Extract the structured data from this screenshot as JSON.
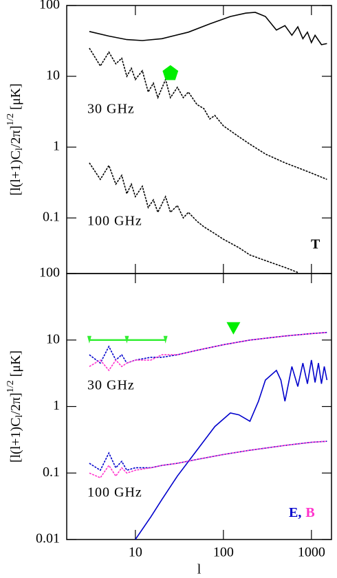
{
  "chart_data": [
    {
      "type": "line",
      "log_x": true,
      "log_y": true,
      "xlim": [
        1.66,
        1690
      ],
      "ylim": [
        0.0164,
        100
      ],
      "xticks": [
        10,
        100,
        1000
      ],
      "yticks": [
        100,
        10,
        1,
        0.1
      ],
      "ylabel": [
        "[l(l+1)C",
        "l",
        "/2π]",
        "1/2",
        " [μK]"
      ],
      "annotations": [
        "30 GHz",
        "100 GHz",
        "T"
      ],
      "series": [
        {
          "color": "#000000",
          "style": "solid",
          "x": [
            3,
            5,
            8,
            12,
            20,
            40,
            70,
            120,
            180,
            230,
            300,
            400,
            500,
            600,
            700,
            800,
            900,
            1000,
            1100,
            1300,
            1500
          ],
          "values": [
            43,
            37,
            33,
            32,
            34,
            42,
            55,
            70,
            78,
            80,
            70,
            45,
            52,
            38,
            50,
            34,
            42,
            30,
            38,
            28,
            29
          ]
        },
        {
          "color": "#000000",
          "style": "dotted",
          "x": [
            3,
            4,
            5,
            6,
            7,
            8,
            9,
            10,
            12,
            14,
            16,
            18,
            22,
            25,
            30,
            35,
            40,
            50,
            60,
            70,
            80,
            100,
            150,
            200,
            300,
            500,
            800,
            1000,
            1500
          ],
          "values": [
            25,
            14,
            22,
            15,
            18,
            10,
            13,
            9,
            12,
            6,
            8,
            5,
            9,
            5,
            7,
            5,
            6,
            4,
            3.5,
            2.5,
            2.8,
            2,
            1.4,
            1.1,
            0.8,
            0.6,
            0.48,
            0.43,
            0.35
          ]
        },
        {
          "color": "#000000",
          "style": "dotted",
          "x": [
            3,
            4,
            5,
            6,
            7,
            8,
            9,
            10,
            12,
            14,
            16,
            18,
            22,
            25,
            30,
            35,
            40,
            50,
            60,
            80,
            100,
            150,
            200,
            300,
            500,
            700
          ],
          "values": [
            0.6,
            0.35,
            0.55,
            0.3,
            0.4,
            0.22,
            0.3,
            0.2,
            0.28,
            0.14,
            0.18,
            0.12,
            0.2,
            0.12,
            0.15,
            0.1,
            0.12,
            0.09,
            0.075,
            0.06,
            0.05,
            0.038,
            0.03,
            0.025,
            0.02,
            0.017
          ]
        }
      ],
      "markers": [
        {
          "shape": "pentagon",
          "color": "#00ee00",
          "x": 25,
          "y": 11
        }
      ]
    },
    {
      "type": "line",
      "log_x": true,
      "log_y": true,
      "xlim": [
        1.66,
        1690
      ],
      "ylim": [
        0.01,
        100
      ],
      "xticks": [
        10,
        100,
        1000
      ],
      "yticks": [
        100,
        10,
        1,
        0.1,
        0.01
      ],
      "xlabel": "l",
      "ylabel": [
        "[l(l+1)C",
        "l",
        "/2π]",
        "1/2",
        " [μK]"
      ],
      "annotations": [
        "30 GHz",
        "100 GHz"
      ],
      "labels": [
        {
          "text": "E,",
          "color": "#0000cc"
        },
        {
          "text": "B",
          "color": "#ff33cc"
        }
      ],
      "series": [
        {
          "color": "#0000cc",
          "style": "solid",
          "x": [
            10,
            15,
            20,
            30,
            50,
            80,
            120,
            150,
            200,
            250,
            300,
            400,
            450,
            500,
            600,
            700,
            800,
            900,
            1000,
            1100,
            1200,
            1300,
            1400,
            1500
          ],
          "values": [
            0.01,
            0.022,
            0.04,
            0.09,
            0.22,
            0.5,
            0.8,
            0.75,
            0.6,
            1.2,
            2.5,
            3.5,
            2.5,
            1.2,
            4,
            2,
            4.5,
            2.2,
            5,
            2.3,
            4.5,
            2.2,
            4,
            2.5
          ]
        },
        {
          "color": "#0000cc",
          "style": "dotted",
          "x": [
            3,
            4,
            5,
            6,
            7,
            8,
            10,
            15,
            20,
            30,
            50,
            100,
            200,
            500,
            1000,
            1500
          ],
          "values": [
            6,
            4.5,
            8,
            5,
            6,
            4.5,
            5,
            5.5,
            5.5,
            6,
            7,
            8.5,
            10,
            11.5,
            12.5,
            13
          ]
        },
        {
          "color": "#ff33cc",
          "style": "dotted",
          "x": [
            3,
            4,
            5,
            6,
            7,
            8,
            10,
            15,
            20,
            30,
            50,
            100,
            200,
            500,
            1000,
            1500
          ],
          "values": [
            4,
            5,
            3.5,
            5,
            4,
            4.5,
            5,
            5,
            6,
            6,
            7,
            8.5,
            10,
            11.5,
            12.5,
            13
          ]
        },
        {
          "color": "#0000cc",
          "style": "dotted",
          "x": [
            3,
            4,
            5,
            6,
            7,
            8,
            10,
            15,
            20,
            30,
            50,
            100,
            200,
            500,
            1000,
            1500
          ],
          "values": [
            0.14,
            0.11,
            0.2,
            0.12,
            0.15,
            0.11,
            0.12,
            0.12,
            0.13,
            0.14,
            0.16,
            0.19,
            0.22,
            0.26,
            0.29,
            0.3
          ]
        },
        {
          "color": "#ff33cc",
          "style": "dotted",
          "x": [
            3,
            4,
            5,
            6,
            7,
            8,
            10,
            15,
            20,
            30,
            50,
            100,
            200,
            500,
            1000,
            1500
          ],
          "values": [
            0.1,
            0.085,
            0.13,
            0.09,
            0.12,
            0.1,
            0.11,
            0.12,
            0.13,
            0.14,
            0.16,
            0.19,
            0.22,
            0.26,
            0.29,
            0.3
          ]
        },
        {
          "color": "#33ee33",
          "style": "limit",
          "x": [
            3,
            8,
            22
          ],
          "values": [
            10,
            10,
            10
          ]
        }
      ],
      "markers": [
        {
          "shape": "triangle",
          "color": "#00ee00",
          "x": 130,
          "y": 15
        }
      ]
    }
  ]
}
